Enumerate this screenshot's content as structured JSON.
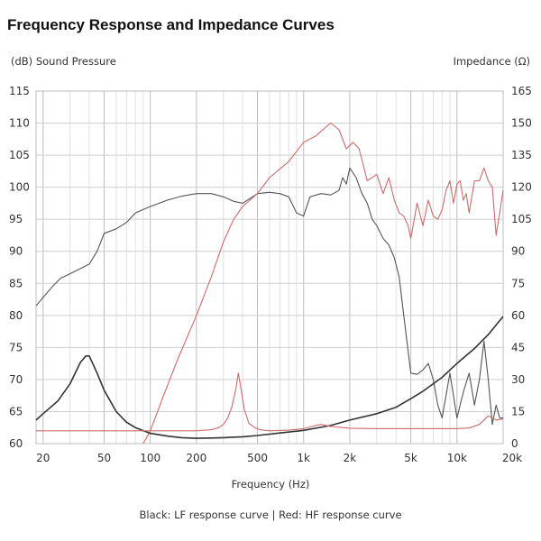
{
  "chart_data": {
    "type": "line",
    "title": "Frequency Response and Impedance Curves",
    "xlabel": "Frequency (Hz)",
    "ylabel_left": "(dB) Sound Pressure",
    "ylabel_right": "Impedance (Ω)",
    "caption_black": "Black: LF response curve",
    "caption_sep": "|",
    "caption_red": "Red: HF response curve",
    "x_scale": "log",
    "xlim": [
      18,
      20000
    ],
    "ylim_left": [
      60,
      115
    ],
    "ylim_right": [
      0,
      165
    ],
    "grid": true,
    "x_ticks": [
      {
        "value": 20,
        "label": "20"
      },
      {
        "value": 50,
        "label": "50"
      },
      {
        "value": 100,
        "label": "100"
      },
      {
        "value": 200,
        "label": "200"
      },
      {
        "value": 500,
        "label": "500"
      },
      {
        "value": 1000,
        "label": "1k"
      },
      {
        "value": 2000,
        "label": "2k"
      },
      {
        "value": 5000,
        "label": "5k"
      },
      {
        "value": 10000,
        "label": "10k"
      },
      {
        "value": 20000,
        "label": "20k"
      }
    ],
    "y_left_ticks": [
      "60",
      "65",
      "70",
      "75",
      "80",
      "85",
      "90",
      "95",
      "100",
      "105",
      "110",
      "115"
    ],
    "y_right_ticks": [
      "0",
      "15",
      "30",
      "45",
      "60",
      "75",
      "90",
      "105",
      "120",
      "135",
      "150",
      "165"
    ],
    "series": [
      {
        "color": "#555555",
        "axis": "left",
        "x": [
          18,
          20,
          23,
          26,
          30,
          35,
          40,
          45,
          50,
          60,
          70,
          80,
          100,
          130,
          160,
          200,
          250,
          300,
          350,
          400,
          500,
          600,
          700,
          800,
          900,
          1000,
          1100,
          1300,
          1500,
          1700,
          1800,
          1900,
          2000,
          2200,
          2400,
          2600,
          2800,
          3000,
          3300,
          3600,
          3900,
          4200,
          4500,
          5000,
          5500,
          6000,
          6500,
          7000,
          7500,
          8000,
          9000,
          10000,
          11000,
          12000,
          13000,
          14000,
          15000,
          16000,
          17000,
          18000,
          19000,
          20000
        ],
        "values": [
          81.5,
          82.8,
          84.5,
          85.8,
          86.5,
          87.3,
          88,
          90,
          92.8,
          93.5,
          94.5,
          96,
          97,
          98,
          98.6,
          99,
          99,
          98.5,
          97.8,
          97.5,
          99,
          99.2,
          99,
          98.5,
          96,
          95.5,
          98.5,
          99,
          98.8,
          99.5,
          101.5,
          100.5,
          103,
          101.5,
          99,
          97.5,
          95,
          94,
          92,
          91,
          89,
          86,
          80,
          71,
          70.8,
          71.5,
          72.5,
          70,
          66,
          64,
          71,
          64,
          68,
          71,
          66,
          70,
          76,
          70,
          63,
          66,
          64,
          64
        ]
      },
      {
        "color": "#d06a6a",
        "axis": "left",
        "x": [
          90,
          100,
          120,
          150,
          200,
          250,
          300,
          350,
          400,
          500,
          600,
          800,
          1000,
          1200,
          1500,
          1700,
          1900,
          2100,
          2300,
          2600,
          3000,
          3300,
          3600,
          3900,
          4200,
          4500,
          4800,
          5000,
          5500,
          6000,
          6500,
          7000,
          7500,
          8000,
          8500,
          9000,
          9500,
          10000,
          10500,
          11000,
          11500,
          12000,
          13000,
          14000,
          15000,
          16000,
          17000,
          18000,
          19000,
          20000
        ],
        "values": [
          60,
          62,
          67,
          73,
          80,
          86,
          91.5,
          95,
          97,
          99,
          101.5,
          104,
          107,
          108,
          110,
          109,
          106,
          107,
          106,
          101,
          102,
          99,
          101.5,
          98,
          96,
          95.5,
          94,
          92,
          97.5,
          94,
          98,
          95.5,
          95,
          96.5,
          99.5,
          101,
          97.5,
          100.5,
          101,
          98,
          99,
          96,
          101,
          101,
          103,
          101,
          100,
          92.5,
          96,
          99.5
        ]
      },
      {
        "color": "#333333",
        "axis": "right",
        "x": [
          18,
          20,
          25,
          30,
          35,
          38,
          40,
          45,
          50,
          60,
          70,
          80,
          100,
          130,
          160,
          200,
          250,
          300,
          400,
          500,
          700,
          1000,
          1500,
          2000,
          3000,
          4000,
          5000,
          6000,
          8000,
          10000,
          13000,
          16000,
          20000
        ],
        "values": [
          11,
          14,
          20,
          28,
          38,
          41,
          41,
          33,
          25,
          15,
          10,
          7.5,
          4.8,
          3.5,
          2.8,
          2.5,
          2.6,
          2.8,
          3.2,
          3.8,
          5,
          6.2,
          8.5,
          11,
          14,
          17,
          21,
          24.5,
          31,
          37.5,
          44.5,
          51,
          59.5
        ]
      },
      {
        "color": "#d06a6a",
        "axis": "right",
        "x": [
          18,
          50,
          100,
          200,
          250,
          280,
          300,
          320,
          340,
          360,
          375,
          390,
          410,
          440,
          480,
          520,
          600,
          800,
          1000,
          1200,
          1300,
          1500,
          1800,
          2000,
          3000,
          5000,
          10000,
          12000,
          14000,
          16000,
          18000,
          20000
        ],
        "values": [
          6,
          6,
          6,
          6,
          6.5,
          7.5,
          9,
          12,
          17,
          25,
          33,
          26,
          16,
          9.5,
          7.5,
          6.5,
          6,
          6.3,
          7,
          8.5,
          9,
          8,
          7.5,
          7.2,
          7,
          7,
          7,
          7.3,
          9,
          13,
          11,
          11.5
        ]
      }
    ]
  }
}
